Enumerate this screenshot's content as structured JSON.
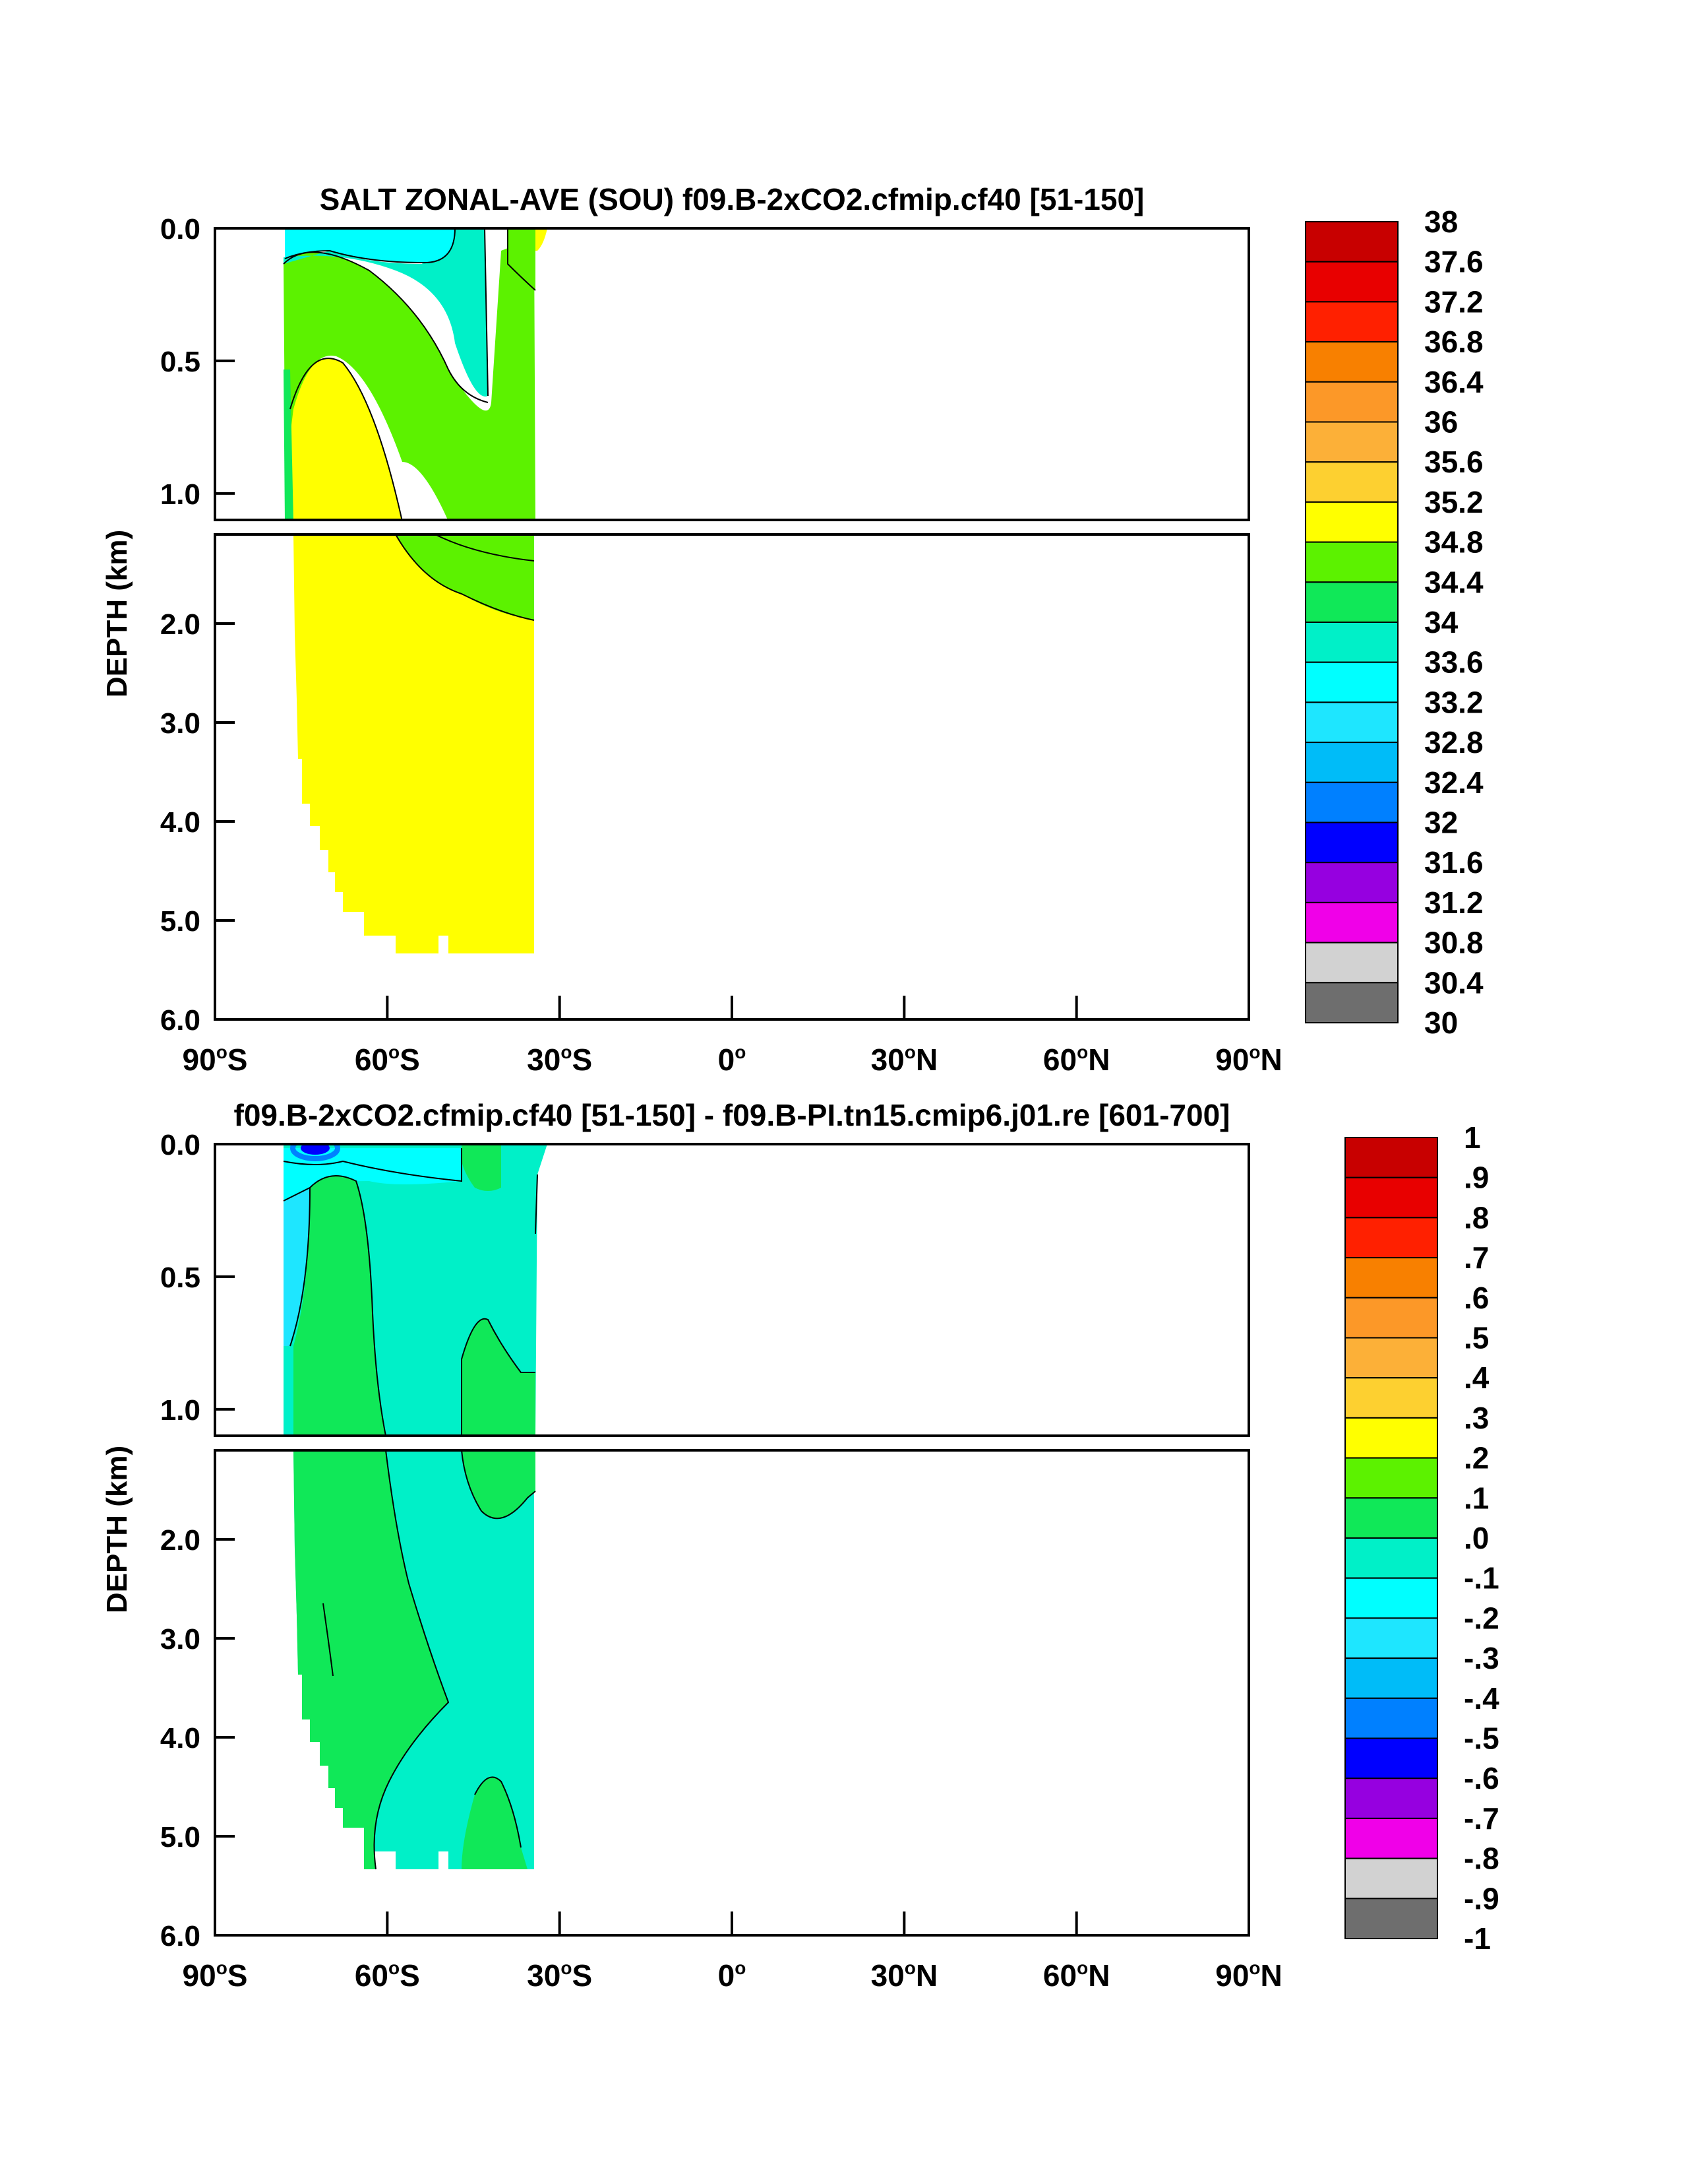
{
  "chart_data": [
    {
      "type": "heatmap",
      "title": "SALT ZONAL-AVE (SOU) f09.B-2xCO2.cfmip.cf40 [51-150]",
      "ylabel": "DEPTH (km)",
      "xlabel": "",
      "xlim": [
        -90,
        90
      ],
      "ylim": [
        6.0,
        0.0
      ],
      "upper_panel": {
        "ylim": [
          0.0,
          1.1
        ],
        "ticks": [
          "0.0",
          "0.5",
          "1.0"
        ],
        "tick_values": [
          0.0,
          0.5,
          1.0
        ]
      },
      "lower_panel": {
        "ylim": [
          1.1,
          6.0
        ],
        "ticks": [
          "2.0",
          "3.0",
          "4.0",
          "5.0",
          "6.0"
        ],
        "tick_values": [
          2.0,
          3.0,
          4.0,
          5.0,
          6.0
        ]
      },
      "xticks": [
        {
          "value": -90,
          "num": "90",
          "hem": "S"
        },
        {
          "value": -60,
          "num": "60",
          "hem": "S"
        },
        {
          "value": -30,
          "num": "30",
          "hem": "S"
        },
        {
          "value": 0,
          "num": "0",
          "hem": ""
        },
        {
          "value": 30,
          "num": "30",
          "hem": "N"
        },
        {
          "value": 60,
          "num": "60",
          "hem": "N"
        },
        {
          "value": 90,
          "num": "90",
          "hem": "N"
        }
      ],
      "colorbar": {
        "labels": [
          "38",
          "37.6",
          "37.2",
          "36.8",
          "36.4",
          "36",
          "35.6",
          "35.2",
          "34.8",
          "34.4",
          "34",
          "33.6",
          "33.2",
          "32.8",
          "32.4",
          "32",
          "31.6",
          "31.2",
          "30.8",
          "30.4",
          "30"
        ],
        "colors": [
          "#c80000",
          "#e80000",
          "#ff2000",
          "#f88000",
          "#fc9828",
          "#fcb038",
          "#fdd030",
          "#ffff00",
          "#5cf200",
          "#10e858",
          "#00f0c8",
          "#00ffff",
          "#1ee6ff",
          "#00bcf8",
          "#0080ff",
          "#0000ff",
          "#9600e0",
          "#f000e8",
          "#d2d2d2",
          "#6e6e6e"
        ]
      },
      "fields": [
        {
          "region": "deep and interior",
          "color": "#ffff00",
          "range": "34.8-35.2",
          "lat_range": [
            -76,
            -34
          ],
          "depth_range": [
            0.5,
            5.4
          ]
        },
        {
          "region": "mid-depth tongue north of 60S",
          "color": "#5cf200",
          "range": "34.4-34.8",
          "lat_range": [
            -78,
            -34
          ],
          "depth_range": [
            0.15,
            2.1
          ]
        },
        {
          "region": "upper ocean 40-35S",
          "color": "#00f0c8",
          "range": "33.6-34.0",
          "lat_range": [
            -60,
            -34
          ],
          "depth_range": [
            0.0,
            0.95
          ]
        },
        {
          "region": "surface near 60S",
          "color": "#00ffff",
          "range": "33.2-33.6",
          "lat_range": [
            -78,
            -45
          ],
          "depth_range": [
            0.0,
            0.1
          ]
        }
      ]
    },
    {
      "type": "heatmap",
      "title": "f09.B-2xCO2.cfmip.cf40 [51-150] - f09.B-PI.tn15.cmip6.j01.re [601-700]",
      "ylabel": "DEPTH (km)",
      "xlabel": "",
      "xlim": [
        -90,
        90
      ],
      "ylim": [
        6.0,
        0.0
      ],
      "upper_panel": {
        "ylim": [
          0.0,
          1.1
        ],
        "ticks": [
          "0.0",
          "0.5",
          "1.0"
        ],
        "tick_values": [
          0.0,
          0.5,
          1.0
        ]
      },
      "lower_panel": {
        "ylim": [
          1.1,
          6.0
        ],
        "ticks": [
          "2.0",
          "3.0",
          "4.0",
          "5.0",
          "6.0"
        ],
        "tick_values": [
          2.0,
          3.0,
          4.0,
          5.0,
          6.0
        ]
      },
      "xticks": [
        {
          "value": -90,
          "num": "90",
          "hem": "S"
        },
        {
          "value": -60,
          "num": "60",
          "hem": "S"
        },
        {
          "value": -30,
          "num": "30",
          "hem": "S"
        },
        {
          "value": 0,
          "num": "0",
          "hem": ""
        },
        {
          "value": 30,
          "num": "30",
          "hem": "N"
        },
        {
          "value": 60,
          "num": "60",
          "hem": "N"
        },
        {
          "value": 90,
          "num": "90",
          "hem": "N"
        }
      ],
      "colorbar": {
        "labels": [
          "1",
          ".9",
          ".8",
          ".7",
          ".6",
          ".5",
          ".4",
          ".3",
          ".2",
          ".1",
          ".0",
          "-.1",
          "-.2",
          "-.3",
          "-.4",
          "-.5",
          "-.6",
          "-.7",
          "-.8",
          "-.9",
          "-1"
        ],
        "colors": [
          "#c80000",
          "#e80000",
          "#ff2000",
          "#f88000",
          "#fc9828",
          "#fcb038",
          "#fdd030",
          "#ffff00",
          "#5cf200",
          "#10e858",
          "#00f0c8",
          "#00ffff",
          "#1ee6ff",
          "#00bcf8",
          "#0080ff",
          "#0000ff",
          "#9600e0",
          "#f000e8",
          "#d2d2d2",
          "#6e6e6e"
        ]
      },
      "fields": [
        {
          "region": "interior band 75-60S",
          "color": "#10e858",
          "range": "0.0-0.1",
          "lat_range": [
            -76,
            -60
          ],
          "depth_range": [
            0.1,
            5.4
          ]
        },
        {
          "region": "interior north of 60S",
          "color": "#00f0c8",
          "range": "-0.1-0.0",
          "lat_range": [
            -60,
            -34
          ],
          "depth_range": [
            0.0,
            5.4
          ]
        },
        {
          "region": "near-surface 75-70S",
          "color": "#0000ff",
          "range": "-0.6--0.5",
          "lat_range": [
            -74,
            -70
          ],
          "depth_range": [
            0.0,
            0.05
          ]
        },
        {
          "region": "upper 45-35S",
          "color": "#10e858",
          "range": "0.0-0.1",
          "lat_range": [
            -46,
            -34
          ],
          "depth_range": [
            0.6,
            1.6
          ]
        }
      ]
    }
  ]
}
